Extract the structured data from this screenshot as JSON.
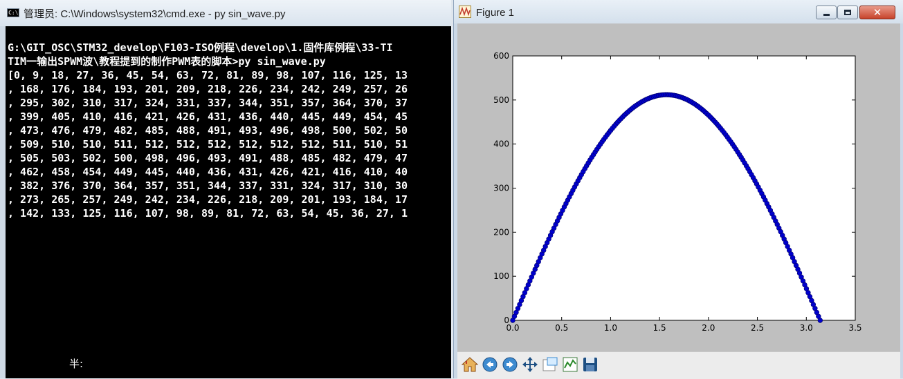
{
  "cmd_window": {
    "title": "管理员: C:\\Windows\\system32\\cmd.exe - py  sin_wave.py",
    "lines": [
      "",
      "G:\\GIT_OSC\\STM32_develop\\F103-ISO例程\\develop\\1.固件库例程\\33-TI",
      "TIM一输出SPWM波\\教程提到的制作PWM表的脚本>py sin_wave.py",
      "[0, 9, 18, 27, 36, 45, 54, 63, 72, 81, 89, 98, 107, 116, 125, 13",
      ", 168, 176, 184, 193, 201, 209, 218, 226, 234, 242, 249, 257, 26",
      ", 295, 302, 310, 317, 324, 331, 337, 344, 351, 357, 364, 370, 37",
      ", 399, 405, 410, 416, 421, 426, 431, 436, 440, 445, 449, 454, 45",
      ", 473, 476, 479, 482, 485, 488, 491, 493, 496, 498, 500, 502, 50",
      ", 509, 510, 510, 511, 512, 512, 512, 512, 512, 512, 511, 510, 51",
      ", 505, 503, 502, 500, 498, 496, 493, 491, 488, 485, 482, 479, 47",
      ", 462, 458, 454, 449, 445, 440, 436, 431, 426, 421, 416, 410, 40",
      ", 382, 376, 370, 364, 357, 351, 344, 337, 331, 324, 317, 310, 30",
      ", 273, 265, 257, 249, 242, 234, 226, 218, 209, 201, 193, 184, 17",
      ", 142, 133, 125, 116, 107, 98, 89, 81, 72, 63, 54, 45, 36, 27, 1"
    ],
    "ime_indicator": "半:"
  },
  "figure_window": {
    "title": "Figure 1",
    "close_glyph": "✕",
    "toolbar_icons": [
      "home-icon",
      "back-icon",
      "forward-icon",
      "pan-icon",
      "zoom-icon",
      "subplots-icon",
      "save-icon"
    ]
  },
  "chart_data": {
    "type": "scatter",
    "title": "",
    "xlabel": "",
    "ylabel": "",
    "xlim": [
      0,
      3.5
    ],
    "ylim": [
      0,
      600
    ],
    "xticks": [
      "0.0",
      "0.5",
      "1.0",
      "1.5",
      "2.0",
      "2.5",
      "3.0",
      "3.5"
    ],
    "yticks": [
      "0",
      "100",
      "200",
      "300",
      "400",
      "500",
      "600"
    ],
    "grid": false,
    "marker_color": "#0000cc",
    "formula": "512*sin(x)",
    "x_start": 0,
    "x_end": 3.1416,
    "point_count": 180,
    "series": [
      {
        "values_sample": [
          0,
          9,
          18,
          27,
          36,
          45,
          54,
          63,
          72,
          81,
          89,
          98,
          107,
          116,
          125,
          168,
          176,
          184,
          193,
          201,
          209,
          218,
          226,
          234,
          242,
          249,
          257,
          295,
          302,
          310,
          317,
          324,
          331,
          337,
          344,
          351,
          357,
          364,
          370,
          399,
          405,
          410,
          416,
          421,
          426,
          431,
          436,
          440,
          445,
          449,
          454,
          473,
          476,
          479,
          482,
          485,
          488,
          491,
          493,
          496,
          498,
          500,
          502,
          509,
          510,
          510,
          511,
          512,
          512,
          512,
          512,
          512,
          512,
          511,
          510
        ]
      }
    ]
  }
}
